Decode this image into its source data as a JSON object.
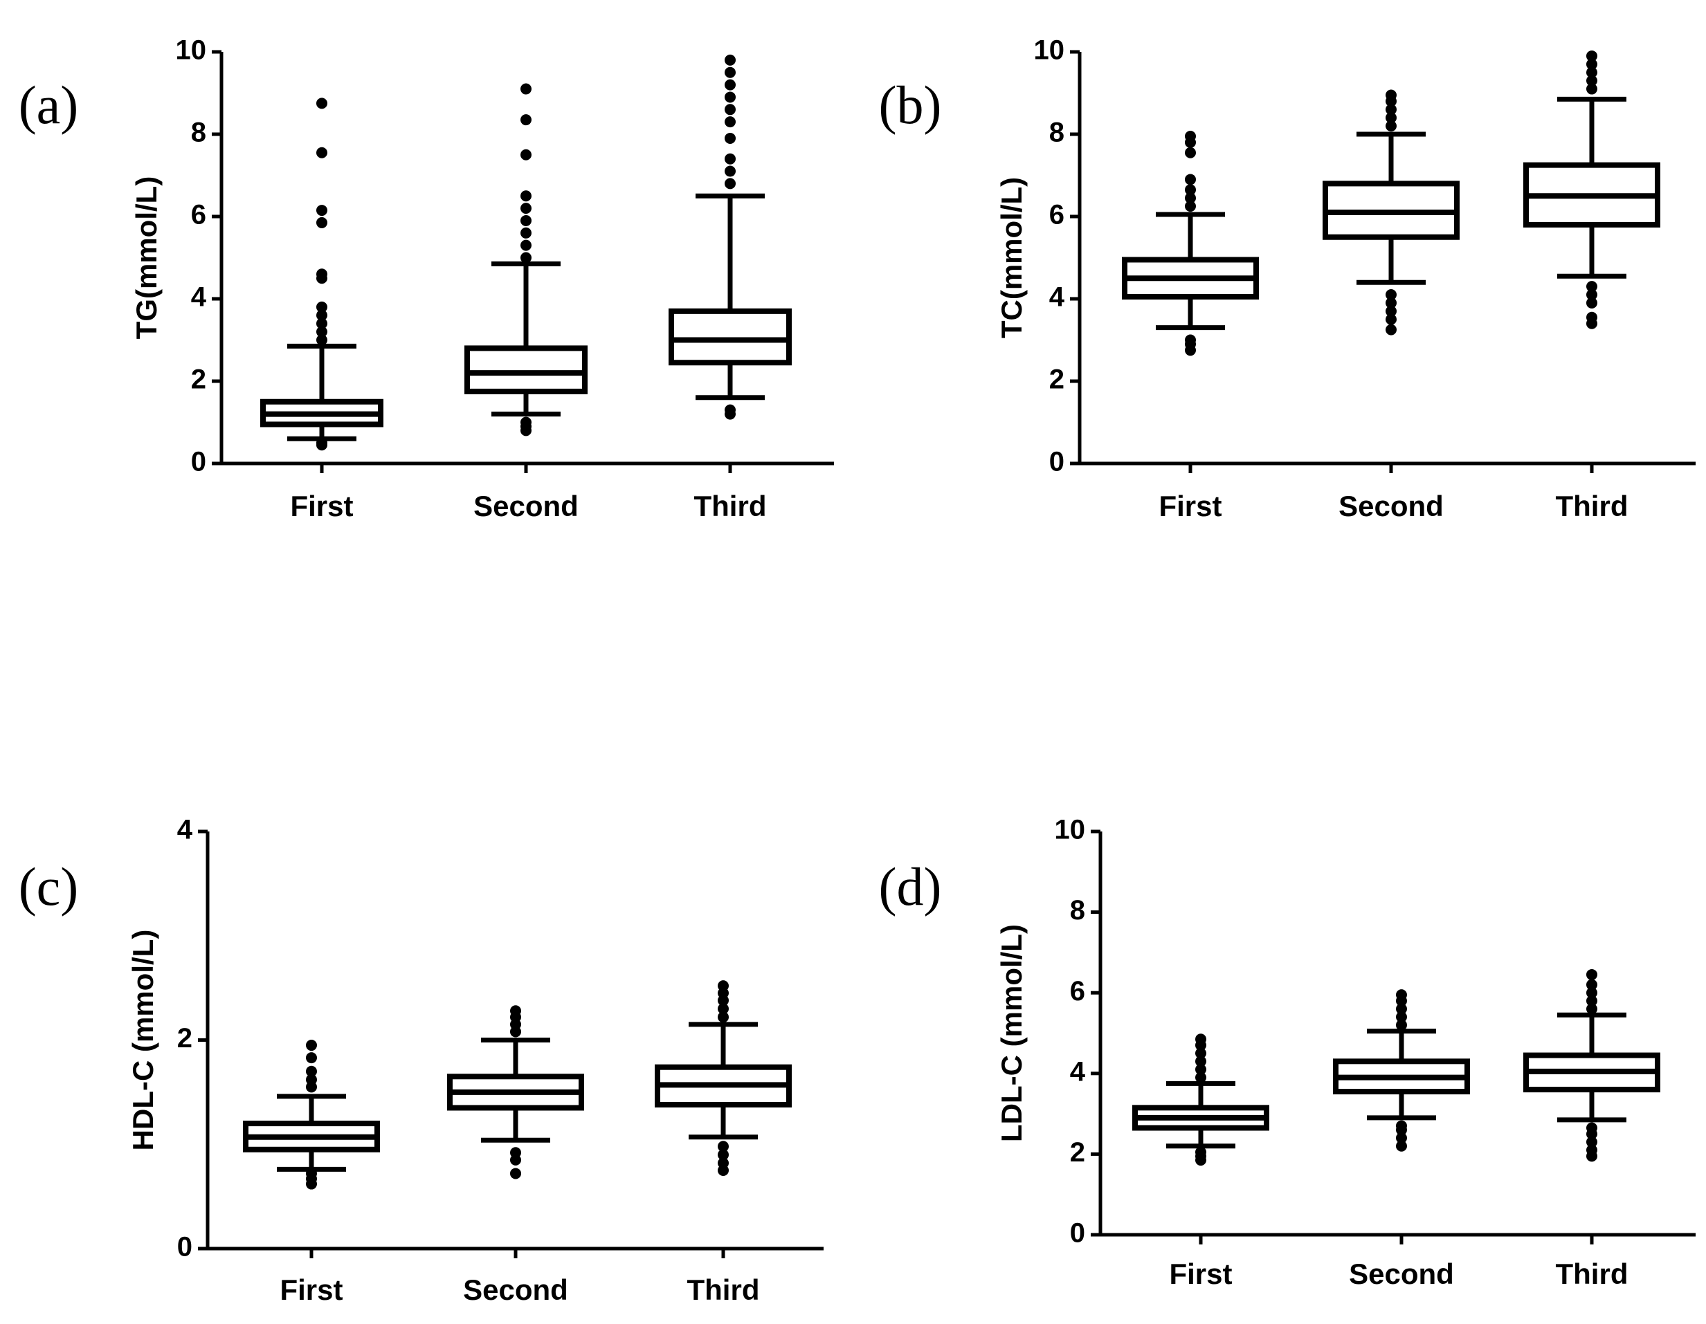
{
  "chart_data": [
    {
      "type": "box",
      "panel_label": "(a)",
      "ylabel": "TG(mmol/L)",
      "xlabel": "",
      "ylim": [
        0,
        10
      ],
      "yticks": [
        0,
        2,
        4,
        6,
        8,
        10
      ],
      "categories": [
        "First",
        "Second",
        "Third"
      ],
      "boxes": [
        {
          "q1": 0.95,
          "median": 1.2,
          "q3": 1.5,
          "whisker_low": 0.6,
          "whisker_high": 2.85,
          "outliers": [
            0.45,
            0.5,
            3.0,
            3.2,
            3.4,
            3.6,
            3.8,
            4.5,
            4.6,
            5.85,
            6.15,
            7.55,
            8.75
          ]
        },
        {
          "q1": 1.75,
          "median": 2.2,
          "q3": 2.8,
          "whisker_low": 1.2,
          "whisker_high": 4.85,
          "outliers": [
            0.8,
            0.9,
            1.0,
            5.0,
            5.3,
            5.6,
            5.9,
            6.2,
            6.5,
            7.5,
            8.35,
            9.1
          ]
        },
        {
          "q1": 2.45,
          "median": 3.0,
          "q3": 3.7,
          "whisker_low": 1.6,
          "whisker_high": 6.5,
          "outliers": [
            1.2,
            1.3,
            6.8,
            7.1,
            7.4,
            7.9,
            8.3,
            8.6,
            8.9,
            9.2,
            9.5,
            9.8
          ]
        }
      ]
    },
    {
      "type": "box",
      "panel_label": "(b)",
      "ylabel": "TC(mmol/L)",
      "xlabel": "",
      "ylim": [
        0,
        10
      ],
      "yticks": [
        0,
        2,
        4,
        6,
        8,
        10
      ],
      "categories": [
        "First",
        "Second",
        "Third"
      ],
      "boxes": [
        {
          "q1": 4.05,
          "median": 4.5,
          "q3": 4.95,
          "whisker_low": 3.3,
          "whisker_high": 6.05,
          "outliers": [
            2.75,
            2.9,
            3.0,
            6.25,
            6.45,
            6.65,
            6.9,
            7.55,
            7.8,
            7.95
          ]
        },
        {
          "q1": 5.5,
          "median": 6.1,
          "q3": 6.8,
          "whisker_low": 4.4,
          "whisker_high": 8.0,
          "outliers": [
            3.25,
            3.5,
            3.7,
            3.9,
            4.1,
            8.2,
            8.4,
            8.6,
            8.8,
            8.95
          ]
        },
        {
          "q1": 5.8,
          "median": 6.5,
          "q3": 7.25,
          "whisker_low": 4.55,
          "whisker_high": 8.85,
          "outliers": [
            3.4,
            3.55,
            3.9,
            4.1,
            4.3,
            9.1,
            9.3,
            9.5,
            9.7,
            9.9
          ]
        }
      ]
    },
    {
      "type": "box",
      "panel_label": "(c)",
      "ylabel": "HDL-C (mmol/L)",
      "xlabel": "",
      "ylim": [
        0,
        4
      ],
      "yticks": [
        0,
        2,
        4
      ],
      "categories": [
        "First",
        "Second",
        "Third"
      ],
      "boxes": [
        {
          "q1": 0.95,
          "median": 1.07,
          "q3": 1.2,
          "whisker_low": 0.76,
          "whisker_high": 1.46,
          "outliers": [
            0.62,
            0.67,
            0.72,
            1.55,
            1.62,
            1.7,
            1.83,
            1.95
          ]
        },
        {
          "q1": 1.35,
          "median": 1.5,
          "q3": 1.65,
          "whisker_low": 1.04,
          "whisker_high": 2.0,
          "outliers": [
            0.72,
            0.85,
            0.92,
            2.08,
            2.15,
            2.22,
            2.28
          ]
        },
        {
          "q1": 1.38,
          "median": 1.57,
          "q3": 1.74,
          "whisker_low": 1.07,
          "whisker_high": 2.15,
          "outliers": [
            0.75,
            0.82,
            0.9,
            0.98,
            2.22,
            2.3,
            2.38,
            2.45,
            2.52
          ]
        }
      ]
    },
    {
      "type": "box",
      "panel_label": "(d)",
      "ylabel": "LDL-C (mmol/L)",
      "xlabel": "",
      "ylim": [
        0,
        10
      ],
      "yticks": [
        0,
        2,
        4,
        6,
        8,
        10
      ],
      "categories": [
        "First",
        "Second",
        "Third"
      ],
      "boxes": [
        {
          "q1": 2.65,
          "median": 2.9,
          "q3": 3.15,
          "whisker_low": 2.2,
          "whisker_high": 3.75,
          "outliers": [
            1.85,
            1.95,
            2.05,
            3.9,
            4.1,
            4.3,
            4.5,
            4.7,
            4.85
          ]
        },
        {
          "q1": 3.55,
          "median": 3.9,
          "q3": 4.3,
          "whisker_low": 2.9,
          "whisker_high": 5.05,
          "outliers": [
            2.2,
            2.4,
            2.6,
            2.7,
            5.2,
            5.4,
            5.6,
            5.8,
            5.95
          ]
        },
        {
          "q1": 3.6,
          "median": 4.05,
          "q3": 4.45,
          "whisker_low": 2.85,
          "whisker_high": 5.45,
          "outliers": [
            1.95,
            2.1,
            2.3,
            2.5,
            2.65,
            5.6,
            5.8,
            6.0,
            6.2,
            6.45
          ]
        }
      ]
    }
  ]
}
